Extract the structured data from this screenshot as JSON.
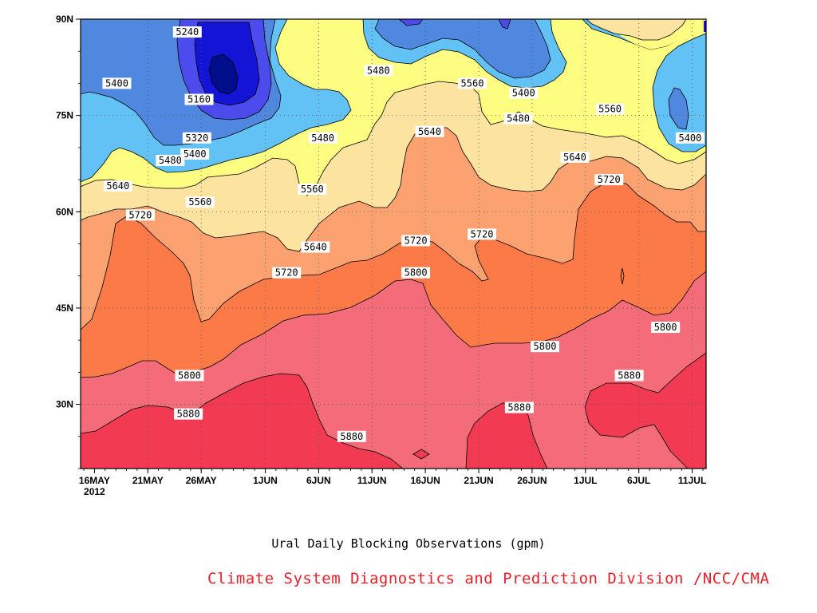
{
  "chart_data": {
    "type": "contour",
    "title": "Ural Daily Blocking Observations (gpm)",
    "credit": "Climate System Diagnostics and Prediction Division /NCC/CMA",
    "x_ticks": [
      {
        "label": "16MAY",
        "sublabel": "2012",
        "day": 0
      },
      {
        "label": "21MAY",
        "day": 5
      },
      {
        "label": "26MAY",
        "day": 10
      },
      {
        "label": "1JUN",
        "day": 16
      },
      {
        "label": "6JUN",
        "day": 21
      },
      {
        "label": "11JUN",
        "day": 26
      },
      {
        "label": "16JUN",
        "day": 31
      },
      {
        "label": "21JUN",
        "day": 36
      },
      {
        "label": "26JUN",
        "day": 41
      },
      {
        "label": "1JUL",
        "day": 46
      },
      {
        "label": "6JUL",
        "day": 51
      },
      {
        "label": "11JUL",
        "day": 56
      }
    ],
    "x_range_days": [
      -1.3,
      57.3
    ],
    "y_ticks": [
      {
        "label": "30N",
        "value": 30
      },
      {
        "label": "45N",
        "value": 45
      },
      {
        "label": "60N",
        "value": 60
      },
      {
        "label": "75N",
        "value": 75
      },
      {
        "label": "90N",
        "value": 90
      }
    ],
    "y_range": [
      20,
      90
    ],
    "levels": [
      5080,
      5160,
      5240,
      5320,
      5400,
      5480,
      5560,
      5640,
      5720,
      5800,
      5880
    ],
    "fill_colors": {
      "5080": "#000e8c",
      "5160": "#1414d6",
      "5240": "#4b4bee",
      "5320": "#5088e0",
      "5400": "#62c2f6",
      "5480": "#fdfd82",
      "5560": "#fde3a0",
      "5640": "#fca270",
      "5720": "#fc7a48",
      "5800": "#f46c7a",
      "5880": "#f23a52"
    },
    "contour_labels": [
      {
        "text": "5240",
        "day": 8.7,
        "lat": 88
      },
      {
        "text": "5160",
        "day": 9.8,
        "lat": 77.5
      },
      {
        "text": "5320",
        "day": 9.6,
        "lat": 71.5
      },
      {
        "text": "5400",
        "day": 9.4,
        "lat": 69
      },
      {
        "text": "5480",
        "day": 7.1,
        "lat": 68
      },
      {
        "text": "5400",
        "day": 2.1,
        "lat": 80
      },
      {
        "text": "5480",
        "day": 26.6,
        "lat": 82
      },
      {
        "text": "5560",
        "day": 35.4,
        "lat": 80
      },
      {
        "text": "5400",
        "day": 40.2,
        "lat": 78.5
      },
      {
        "text": "5480",
        "day": 39.7,
        "lat": 74.5
      },
      {
        "text": "5560",
        "day": 48.3,
        "lat": 76
      },
      {
        "text": "5400",
        "day": 55.8,
        "lat": 71.5
      },
      {
        "text": "5480",
        "day": 21.4,
        "lat": 71.5
      },
      {
        "text": "5640",
        "day": 31.4,
        "lat": 72.5
      },
      {
        "text": "5640",
        "day": 45.0,
        "lat": 68.5
      },
      {
        "text": "5640",
        "day": 2.2,
        "lat": 64
      },
      {
        "text": "5560",
        "day": 9.9,
        "lat": 61.5
      },
      {
        "text": "5560",
        "day": 20.4,
        "lat": 63.5
      },
      {
        "text": "5720",
        "day": 48.2,
        "lat": 65
      },
      {
        "text": "5720",
        "day": 4.3,
        "lat": 59.5
      },
      {
        "text": "5640",
        "day": 20.7,
        "lat": 54.5
      },
      {
        "text": "5720",
        "day": 30.1,
        "lat": 55.5
      },
      {
        "text": "5720",
        "day": 36.3,
        "lat": 56.5
      },
      {
        "text": "5720",
        "day": 18.0,
        "lat": 50.5
      },
      {
        "text": "5800",
        "day": 30.1,
        "lat": 50.5
      },
      {
        "text": "5800",
        "day": 53.5,
        "lat": 42
      },
      {
        "text": "5800",
        "day": 42.2,
        "lat": 39
      },
      {
        "text": "5800",
        "day": 8.9,
        "lat": 34.5
      },
      {
        "text": "5880",
        "day": 50.1,
        "lat": 34.5
      },
      {
        "text": "5880",
        "day": 8.8,
        "lat": 28.5
      },
      {
        "text": "5880",
        "day": 39.8,
        "lat": 29.5
      },
      {
        "text": "5880",
        "day": 24.1,
        "lat": 25
      }
    ],
    "grid": "dotted",
    "legend": "none"
  }
}
